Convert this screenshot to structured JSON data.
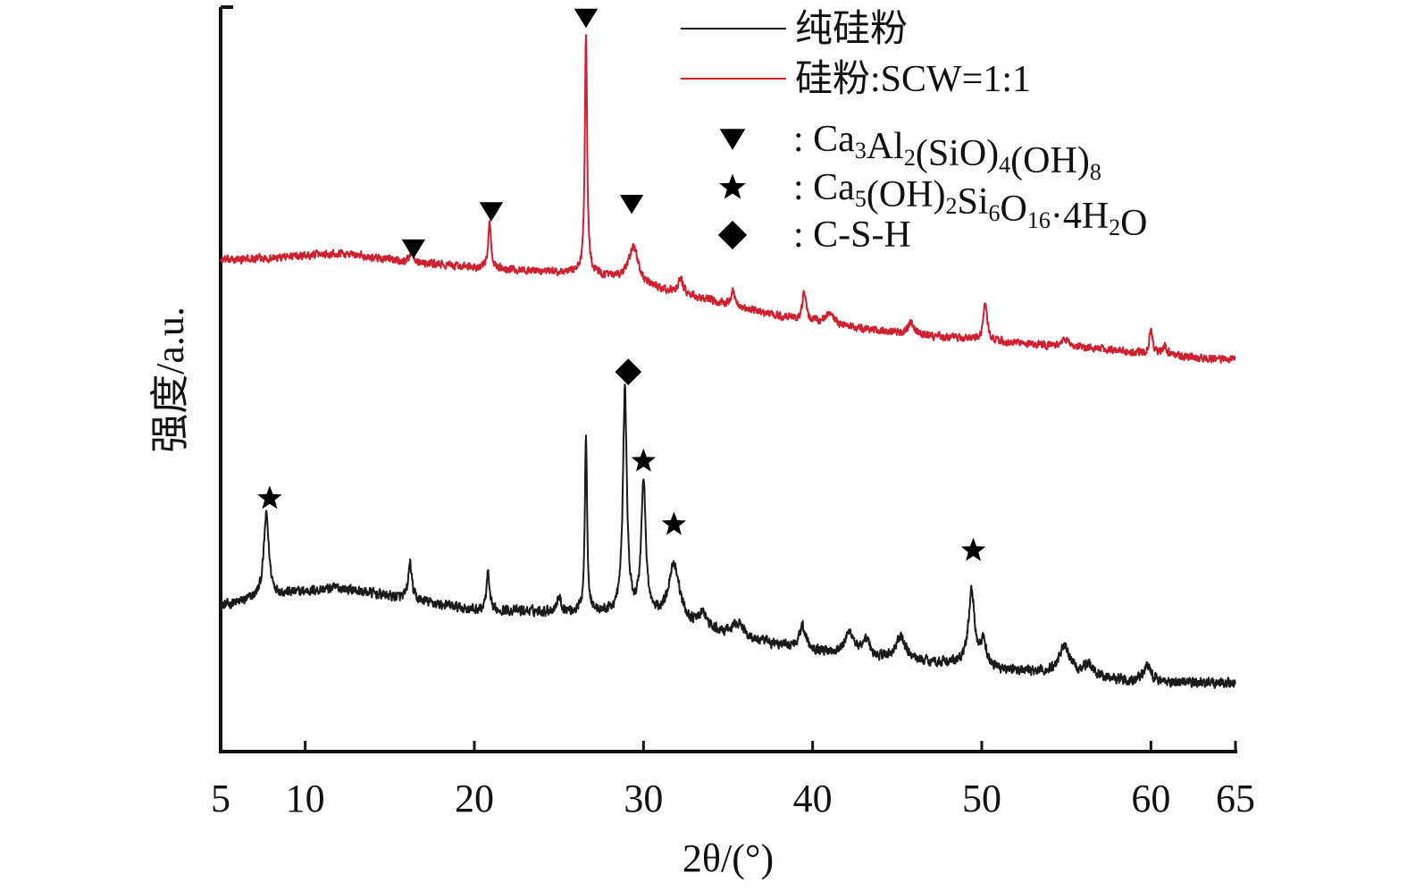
{
  "chart_data": {
    "type": "line",
    "xlabel": "2θ/(°)",
    "ylabel": "强度/a.u.",
    "xlim": [
      5,
      65
    ],
    "xticks": [
      5,
      10,
      20,
      30,
      40,
      50,
      60,
      65
    ],
    "ylim": [
      0,
      100
    ],
    "legend_position": "top-right",
    "series": [
      {
        "name": "纯硅粉",
        "color": "#1a1a1a",
        "baseline": [
          [
            5,
            19.5
          ],
          [
            8,
            21
          ],
          [
            12,
            22
          ],
          [
            16,
            20.5
          ],
          [
            20,
            19
          ],
          [
            24,
            18.8
          ],
          [
            28,
            18.5
          ],
          [
            30,
            18.0
          ],
          [
            33,
            16.5
          ],
          [
            36,
            15.0
          ],
          [
            40,
            13.5
          ],
          [
            44,
            12.5
          ],
          [
            48,
            11.8
          ],
          [
            52,
            10.8
          ],
          [
            56,
            10.0
          ],
          [
            60,
            9.3
          ],
          [
            65,
            9.2
          ]
        ],
        "peaks": [
          {
            "x": 7.7,
            "height": 11,
            "width": 0.18
          },
          {
            "x": 16.2,
            "height": 5,
            "width": 0.12
          },
          {
            "x": 20.8,
            "height": 5,
            "width": 0.1
          },
          {
            "x": 25.0,
            "height": 2,
            "width": 0.15
          },
          {
            "x": 26.6,
            "height": 24,
            "width": 0.08
          },
          {
            "x": 28.9,
            "height": 30,
            "width": 0.14
          },
          {
            "x": 30.0,
            "height": 18,
            "width": 0.16
          },
          {
            "x": 31.8,
            "height": 8,
            "width": 0.4
          },
          {
            "x": 33.5,
            "height": 2,
            "width": 0.3
          },
          {
            "x": 35.6,
            "height": 2,
            "width": 0.4
          },
          {
            "x": 39.4,
            "height": 3,
            "width": 0.25
          },
          {
            "x": 42.2,
            "height": 3,
            "width": 0.35
          },
          {
            "x": 43.2,
            "height": 2,
            "width": 0.2
          },
          {
            "x": 45.2,
            "height": 3,
            "width": 0.35
          },
          {
            "x": 49.4,
            "height": 10,
            "width": 0.22
          },
          {
            "x": 50.1,
            "height": 3,
            "width": 0.2
          },
          {
            "x": 54.9,
            "height": 4,
            "width": 0.4
          },
          {
            "x": 56.3,
            "height": 1.5,
            "width": 0.4
          },
          {
            "x": 59.8,
            "height": 2,
            "width": 0.3
          }
        ],
        "noise": 0.9
      },
      {
        "name": "硅粉:SCW=1:1",
        "color": "#d0202f",
        "baseline": [
          [
            5,
            66
          ],
          [
            8,
            66.3
          ],
          [
            12,
            67
          ],
          [
            16,
            65.8
          ],
          [
            20,
            65
          ],
          [
            24,
            64.5
          ],
          [
            27,
            64.2
          ],
          [
            30,
            62.5
          ],
          [
            34,
            60.5
          ],
          [
            38,
            58.5
          ],
          [
            42,
            57.0
          ],
          [
            46,
            56.0
          ],
          [
            50,
            55.3
          ],
          [
            54,
            54.5
          ],
          [
            58,
            53.8
          ],
          [
            62,
            53.0
          ],
          [
            65,
            52.7
          ]
        ],
        "peaks": [
          {
            "x": 16.3,
            "height": 1.5,
            "width": 0.15
          },
          {
            "x": 20.9,
            "height": 6,
            "width": 0.1
          },
          {
            "x": 26.6,
            "height": 32,
            "width": 0.08
          },
          {
            "x": 29.4,
            "height": 5,
            "width": 0.35
          },
          {
            "x": 32.2,
            "height": 2,
            "width": 0.2
          },
          {
            "x": 35.3,
            "height": 2,
            "width": 0.15
          },
          {
            "x": 39.5,
            "height": 4,
            "width": 0.12
          },
          {
            "x": 41.0,
            "height": 1.5,
            "width": 0.3
          },
          {
            "x": 45.8,
            "height": 1.5,
            "width": 0.2
          },
          {
            "x": 50.2,
            "height": 4.5,
            "width": 0.15
          },
          {
            "x": 55.0,
            "height": 1.0,
            "width": 0.3
          },
          {
            "x": 60.0,
            "height": 3.5,
            "width": 0.1
          },
          {
            "x": 60.8,
            "height": 1.2,
            "width": 0.2
          }
        ],
        "noise": 0.7
      }
    ],
    "markers": [
      {
        "symbol": "triangle",
        "x": 16.4,
        "y": 67.5
      },
      {
        "symbol": "triangle",
        "x": 21.0,
        "y": 72.5
      },
      {
        "symbol": "triangle",
        "x": 26.6,
        "y": 98.5
      },
      {
        "symbol": "triangle",
        "x": 29.3,
        "y": 73.5
      },
      {
        "symbol": "diamond",
        "x": 29.1,
        "y": 51.0
      },
      {
        "symbol": "star",
        "x": 7.9,
        "y": 34.0
      },
      {
        "symbol": "star",
        "x": 30.0,
        "y": 39.0
      },
      {
        "symbol": "star",
        "x": 31.8,
        "y": 30.5
      },
      {
        "symbol": "star",
        "x": 49.5,
        "y": 27.0
      }
    ],
    "legend": {
      "lines": [
        {
          "label": "纯硅粉",
          "color": "#1a1a1a"
        },
        {
          "label": "硅粉:SCW=1:1",
          "color": "#d0202f"
        }
      ],
      "symbols": [
        {
          "symbol": "triangle",
          "label_parts": [
            [
              ": Ca",
              ""
            ],
            [
              "3",
              "sub"
            ],
            [
              "Al",
              ""
            ],
            [
              "2",
              "sub"
            ],
            [
              "(SiO)",
              ""
            ],
            [
              "4",
              "sub"
            ],
            [
              "(OH)",
              ""
            ],
            [
              "8",
              "sub"
            ]
          ]
        },
        {
          "symbol": "star",
          "label_parts": [
            [
              ": Ca",
              ""
            ],
            [
              "5",
              "sub"
            ],
            [
              "(OH)",
              ""
            ],
            [
              "2",
              "sub"
            ],
            [
              "Si",
              ""
            ],
            [
              "6",
              "sub"
            ],
            [
              "O",
              ""
            ],
            [
              "16",
              "sub"
            ],
            [
              "·4H",
              ""
            ],
            [
              "2",
              "sub"
            ],
            [
              "O",
              ""
            ]
          ]
        },
        {
          "symbol": "diamond",
          "label_parts": [
            [
              ": C-S-H",
              ""
            ]
          ]
        }
      ]
    }
  }
}
